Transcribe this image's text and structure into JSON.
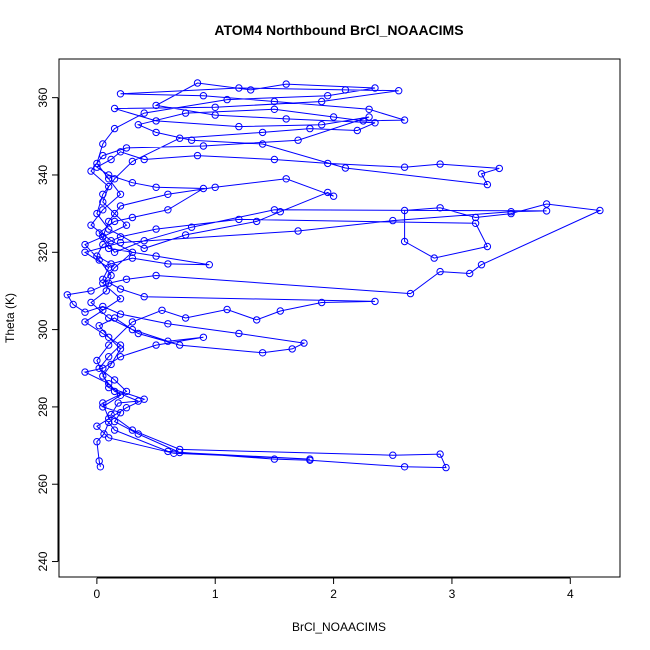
{
  "chart_data": {
    "type": "scatter",
    "title": "ATOM4 Northbound BrCl_NOAACIMS",
    "xlabel": "BrCl_NOAACIMS",
    "ylabel": "Theta (K)",
    "xlim": [
      -0.32,
      4.42
    ],
    "ylim": [
      236,
      370
    ],
    "xticks": [
      "0",
      "1",
      "2",
      "3",
      "4"
    ],
    "yticks": [
      "240",
      "260",
      "280",
      "300",
      "320",
      "340",
      "360"
    ],
    "grid": false,
    "legend": "none",
    "colors": {
      "series": "#0000ff",
      "axis": "#000000",
      "background": "#ffffff"
    },
    "series": [
      {
        "marker": "open-circle",
        "connected": true,
        "points": [
          [
            0.03,
            264.5
          ],
          [
            0.02,
            266
          ],
          [
            0.0,
            271
          ],
          [
            0.06,
            273
          ],
          [
            0.1,
            276
          ],
          [
            0.15,
            274
          ],
          [
            0.6,
            268.5
          ],
          [
            1.5,
            266.5
          ],
          [
            1.8,
            266.2
          ],
          [
            2.6,
            264.5
          ],
          [
            2.95,
            264.3
          ],
          [
            2.9,
            267.8
          ],
          [
            2.5,
            267.5
          ],
          [
            0.7,
            269
          ],
          [
            0.3,
            274
          ],
          [
            0.12,
            278
          ],
          [
            0.18,
            281
          ],
          [
            0.35,
            281.5
          ],
          [
            0.15,
            284
          ],
          [
            0.05,
            288
          ],
          [
            0.12,
            291
          ],
          [
            0.2,
            295
          ],
          [
            0.1,
            298
          ],
          [
            0.02,
            301
          ],
          [
            0.15,
            303
          ],
          [
            0.35,
            299
          ],
          [
            0.7,
            296
          ],
          [
            1.4,
            294
          ],
          [
            1.65,
            295
          ],
          [
            1.75,
            296.5
          ],
          [
            1.2,
            299
          ],
          [
            0.6,
            301.5
          ],
          [
            0.2,
            304
          ],
          [
            0.05,
            306
          ],
          [
            -0.1,
            304.5
          ],
          [
            -0.2,
            306.5
          ],
          [
            -0.25,
            309
          ],
          [
            -0.05,
            310
          ],
          [
            0.1,
            312
          ],
          [
            0.25,
            313
          ],
          [
            0.5,
            314
          ],
          [
            2.65,
            309.3
          ],
          [
            2.9,
            315
          ],
          [
            3.15,
            314.5
          ],
          [
            3.25,
            316.8
          ],
          [
            4.25,
            330.8
          ],
          [
            3.8,
            332.5
          ],
          [
            3.5,
            330
          ],
          [
            3.2,
            329
          ],
          [
            2.9,
            331.5
          ],
          [
            2.6,
            330.8
          ],
          [
            2.6,
            322.8
          ],
          [
            2.85,
            318.5
          ],
          [
            3.3,
            321.5
          ],
          [
            3.2,
            327.5
          ],
          [
            1.2,
            328.5
          ],
          [
            0.5,
            326
          ],
          [
            0.2,
            324
          ],
          [
            0.05,
            322
          ],
          [
            0.0,
            319
          ],
          [
            0.12,
            317
          ],
          [
            0.3,
            318.5
          ],
          [
            0.6,
            317
          ],
          [
            0.95,
            316.8
          ],
          [
            0.5,
            319
          ],
          [
            0.1,
            321
          ],
          [
            0.02,
            325
          ],
          [
            0.15,
            328
          ],
          [
            0.3,
            329
          ],
          [
            0.6,
            331
          ],
          [
            0.9,
            336.5
          ],
          [
            0.5,
            336.8
          ],
          [
            0.3,
            338
          ],
          [
            0.1,
            340
          ],
          [
            0.0,
            342
          ],
          [
            0.12,
            344
          ],
          [
            0.2,
            346
          ],
          [
            0.4,
            344
          ],
          [
            0.85,
            345
          ],
          [
            1.5,
            344
          ],
          [
            1.95,
            343
          ],
          [
            2.6,
            342
          ],
          [
            2.9,
            342.8
          ],
          [
            3.4,
            341.7
          ],
          [
            3.25,
            340.3
          ],
          [
            3.3,
            337.5
          ],
          [
            2.1,
            341.8
          ],
          [
            1.4,
            348
          ],
          [
            0.8,
            349
          ],
          [
            0.5,
            351
          ],
          [
            0.35,
            353
          ],
          [
            0.75,
            356
          ],
          [
            1.5,
            357
          ],
          [
            2.0,
            355
          ],
          [
            2.25,
            354
          ],
          [
            2.6,
            354.2
          ],
          [
            2.3,
            357
          ],
          [
            1.5,
            359
          ],
          [
            0.9,
            360.5
          ],
          [
            0.2,
            361
          ],
          [
            1.2,
            362.5
          ],
          [
            2.1,
            362
          ],
          [
            2.55,
            361.8
          ],
          [
            1.9,
            359
          ],
          [
            1.0,
            357.5
          ],
          [
            0.15,
            357.2
          ],
          [
            0.5,
            354
          ],
          [
            1.2,
            352.5
          ],
          [
            1.9,
            353
          ],
          [
            2.3,
            355
          ],
          [
            1.7,
            349
          ],
          [
            0.9,
            347.5
          ],
          [
            0.25,
            347
          ],
          [
            0.05,
            345
          ],
          [
            -0.05,
            341
          ],
          [
            0.1,
            337
          ],
          [
            0.05,
            333
          ],
          [
            0.15,
            330
          ],
          [
            0.25,
            327
          ],
          [
            0.05,
            324
          ],
          [
            -0.1,
            322
          ],
          [
            0.02,
            318
          ],
          [
            0.12,
            314
          ],
          [
            0.08,
            310
          ],
          [
            -0.05,
            307
          ],
          [
            0.1,
            303
          ],
          [
            0.3,
            300
          ],
          [
            0.6,
            297
          ],
          [
            0.9,
            298
          ],
          [
            0.5,
            296
          ],
          [
            0.2,
            293
          ],
          [
            0.05,
            290
          ],
          [
            -0.1,
            289
          ],
          [
            0.1,
            286
          ],
          [
            0.2,
            283
          ],
          [
            0.05,
            280
          ],
          [
            0.2,
            278.5
          ],
          [
            0.15,
            276.2
          ],
          [
            0.35,
            273
          ],
          [
            0.7,
            268.2
          ],
          [
            1.8,
            266.5
          ],
          [
            0.65,
            268
          ],
          [
            0.1,
            272
          ],
          [
            0.0,
            275
          ],
          [
            0.25,
            279.8
          ],
          [
            0.4,
            282
          ],
          [
            0.1,
            285
          ],
          [
            0.0,
            292
          ],
          [
            0.1,
            296
          ],
          [
            0.3,
            302
          ],
          [
            0.55,
            305
          ],
          [
            0.75,
            303
          ],
          [
            1.1,
            305.2
          ],
          [
            1.35,
            302.5
          ],
          [
            1.55,
            304.8
          ],
          [
            1.9,
            307
          ],
          [
            2.35,
            307.3
          ],
          [
            0.4,
            308.5
          ],
          [
            0.2,
            310.5
          ],
          [
            0.05,
            313
          ],
          [
            0.1,
            316
          ],
          [
            -0.1,
            320
          ],
          [
            0.2,
            322.5
          ],
          [
            1.7,
            325.5
          ],
          [
            2.5,
            328.2
          ],
          [
            3.5,
            330.5
          ],
          [
            3.8,
            330.7
          ],
          [
            1.5,
            331
          ],
          [
            0.8,
            326.5
          ],
          [
            0.4,
            323
          ],
          [
            0.15,
            320
          ],
          [
            0.05,
            324
          ],
          [
            0.1,
            328
          ],
          [
            0.2,
            332
          ],
          [
            0.6,
            335
          ],
          [
            1.0,
            336.8
          ],
          [
            1.6,
            339
          ],
          [
            2.0,
            334.5
          ],
          [
            1.95,
            335.5
          ],
          [
            1.55,
            330.5
          ],
          [
            1.35,
            328
          ],
          [
            0.75,
            324.5
          ],
          [
            0.4,
            321
          ],
          [
            0.1,
            326
          ],
          [
            0.0,
            330
          ],
          [
            0.05,
            335
          ],
          [
            0.15,
            339
          ],
          [
            0.3,
            343.5
          ],
          [
            0.7,
            349.5
          ],
          [
            1.4,
            351
          ],
          [
            1.8,
            352
          ],
          [
            2.2,
            351.5
          ],
          [
            2.35,
            353.5
          ],
          [
            1.6,
            354.5
          ],
          [
            1.0,
            355.5
          ],
          [
            0.5,
            358
          ],
          [
            0.85,
            363.8
          ],
          [
            1.3,
            362
          ],
          [
            1.6,
            363.5
          ],
          [
            2.35,
            362.5
          ],
          [
            1.95,
            360.5
          ],
          [
            1.1,
            359.5
          ],
          [
            0.4,
            356
          ],
          [
            0.15,
            352
          ],
          [
            0.05,
            348
          ],
          [
            0.0,
            343
          ],
          [
            0.1,
            339
          ],
          [
            0.2,
            335
          ],
          [
            0.05,
            331
          ],
          [
            -0.05,
            327
          ],
          [
            0.12,
            323
          ],
          [
            0.3,
            320
          ],
          [
            0.15,
            316
          ],
          [
            0.05,
            312
          ],
          [
            0.2,
            308
          ],
          [
            0.05,
            305
          ],
          [
            -0.1,
            302
          ],
          [
            0.05,
            299
          ],
          [
            0.2,
            296
          ],
          [
            0.1,
            293
          ],
          [
            0.02,
            290
          ],
          [
            0.15,
            287
          ],
          [
            0.25,
            284
          ],
          [
            0.05,
            281
          ],
          [
            0.1,
            277
          ]
        ]
      }
    ]
  }
}
